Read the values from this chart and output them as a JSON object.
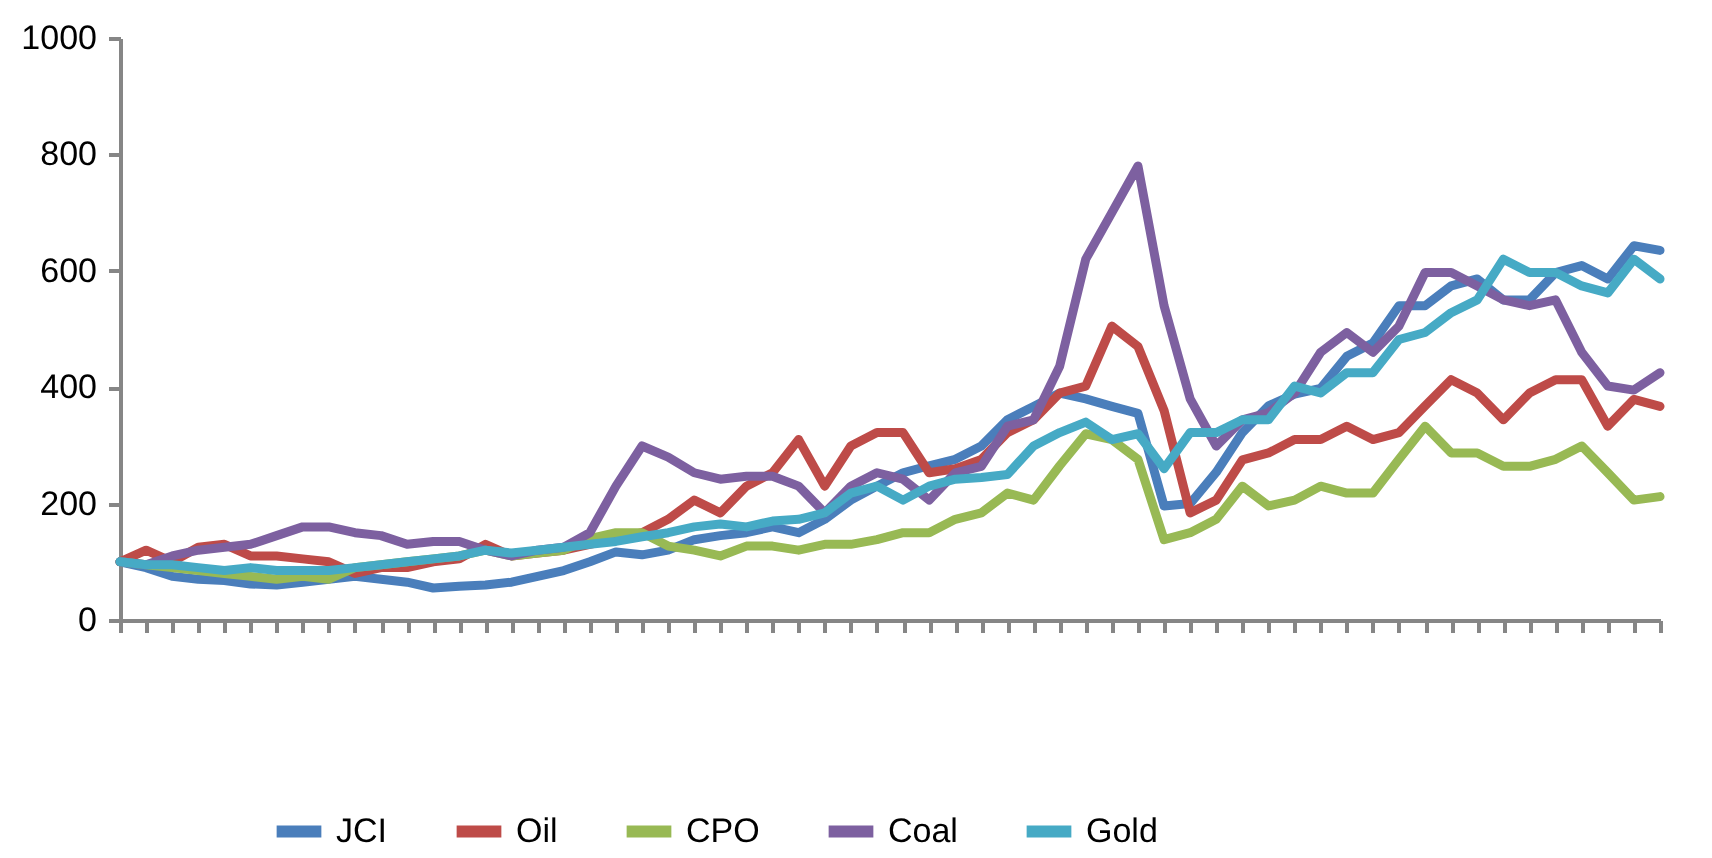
{
  "chart_data": {
    "type": "line",
    "categories": [
      null,
      null,
      null,
      null,
      null,
      null,
      null,
      null,
      null,
      null,
      null,
      null,
      null,
      null,
      null,
      null,
      null,
      null,
      null,
      null,
      null,
      null,
      null,
      null,
      null,
      null,
      null,
      null,
      null,
      null,
      null,
      null,
      null,
      null,
      null,
      null,
      null,
      null,
      null,
      null,
      null,
      null,
      null,
      null,
      null,
      null,
      null,
      null,
      null,
      null,
      null,
      null,
      null,
      null,
      null,
      null,
      null,
      null,
      null,
      null
    ],
    "series": [
      {
        "name": "JCI",
        "color": "#4a7ebb",
        "values": [
          100,
          90,
          75,
          70,
          68,
          62,
          60,
          65,
          70,
          75,
          70,
          65,
          55,
          58,
          60,
          65,
          75,
          85,
          100,
          117,
          112,
          120,
          138,
          145,
          150,
          160,
          150,
          173,
          206,
          230,
          253,
          265,
          276,
          299,
          344,
          367,
          390,
          380,
          367,
          355,
          196,
          200,
          254,
          322,
          368,
          388,
          398,
          453,
          476,
          540,
          540,
          574,
          586,
          550,
          550,
          597,
          609,
          586,
          643,
          635
        ]
      },
      {
        "name": "Oil",
        "color": "#be4b48",
        "values": [
          100,
          120,
          100,
          125,
          130,
          110,
          110,
          105,
          100,
          80,
          90,
          90,
          100,
          105,
          130,
          110,
          115,
          120,
          130,
          140,
          150,
          173,
          206,
          184,
          230,
          253,
          310,
          230,
          299,
          322,
          322,
          253,
          260,
          276,
          322,
          344,
          390,
          402,
          505,
          470,
          360,
          184,
          206,
          275,
          287,
          310,
          310,
          333,
          310,
          322,
          368,
          413,
          390,
          344,
          390,
          413,
          413,
          333,
          379,
          367
        ]
      },
      {
        "name": "CPO",
        "color": "#98b954",
        "values": [
          100,
          95,
          90,
          85,
          80,
          75,
          70,
          75,
          70,
          90,
          95,
          100,
          105,
          110,
          120,
          110,
          115,
          120,
          140,
          150,
          150,
          127,
          120,
          110,
          127,
          127,
          120,
          130,
          130,
          138,
          150,
          150,
          173,
          184,
          218,
          206,
          265,
          320,
          310,
          276,
          138,
          150,
          173,
          230,
          196,
          206,
          230,
          218,
          218,
          276,
          333,
          287,
          287,
          264,
          264,
          276,
          299,
          253,
          206,
          212
        ]
      },
      {
        "name": "Coal",
        "color": "#7d60a0",
        "values": [
          100,
          95,
          110,
          120,
          125,
          130,
          145,
          160,
          160,
          150,
          145,
          130,
          135,
          135,
          120,
          110,
          120,
          125,
          150,
          230,
          299,
          280,
          253,
          242,
          247,
          247,
          230,
          184,
          230,
          253,
          242,
          206,
          253,
          264,
          333,
          344,
          436,
          620,
          700,
          780,
          540,
          380,
          299,
          344,
          356,
          390,
          460,
          494,
          460,
          505,
          597,
          597,
          574,
          550,
          540,
          550,
          460,
          402,
          395,
          425
        ]
      },
      {
        "name": "Gold",
        "color": "#46aac5",
        "values": [
          100,
          95,
          95,
          90,
          85,
          90,
          85,
          85,
          85,
          90,
          95,
          100,
          105,
          110,
          120,
          115,
          120,
          125,
          130,
          135,
          143,
          150,
          160,
          165,
          160,
          170,
          173,
          184,
          218,
          230,
          206,
          230,
          242,
          245,
          250,
          299,
          322,
          340,
          310,
          320,
          260,
          322,
          322,
          344,
          344,
          402,
          390,
          425,
          425,
          482,
          494,
          528,
          550,
          620,
          597,
          597,
          574,
          562,
          620,
          586
        ]
      }
    ],
    "ylim": [
      0,
      1000
    ],
    "yticks": [
      0,
      200,
      400,
      600,
      800,
      1000
    ],
    "grid": false,
    "legend": "bottom",
    "marker": "none",
    "line_style": "solid"
  }
}
